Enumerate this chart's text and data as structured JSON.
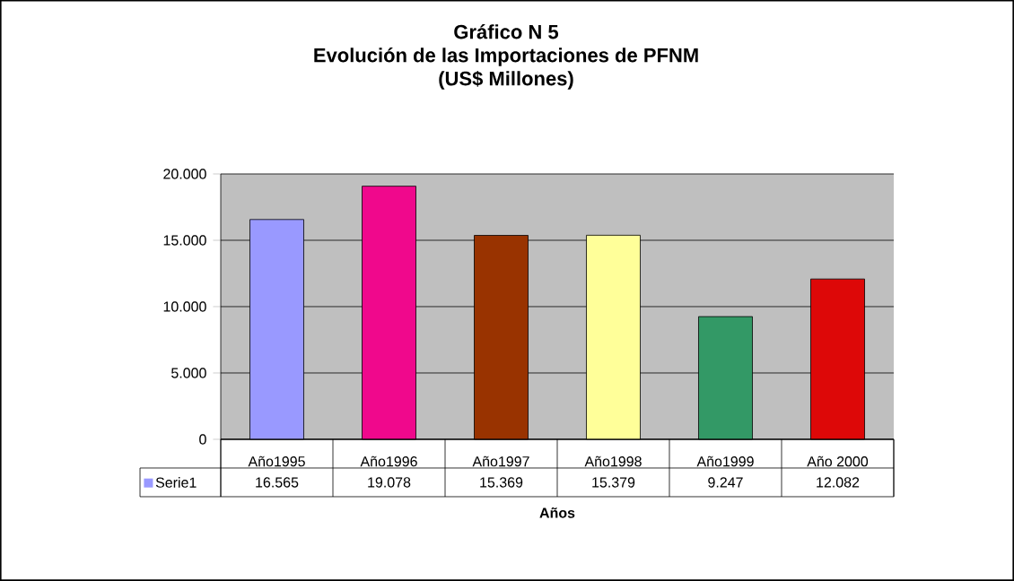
{
  "chart_data": {
    "type": "bar",
    "title": "Gráfico N 5",
    "subtitle": "Evolución de las Importaciones de PFNM",
    "annotations": [
      "(US$ Millones)"
    ],
    "xlabel": "Años",
    "categories": [
      "Año1995",
      "Año1996",
      "Año1997",
      "Año1998",
      "Año1999",
      "Año 2000"
    ],
    "series": [
      {
        "name": "Serie1",
        "color": "#9999ff",
        "colors": [
          "#9999ff",
          "#f0088c",
          "#993300",
          "#ffff99",
          "#339966",
          "#dd0808"
        ],
        "values": [
          16565,
          19078,
          15369,
          15379,
          9247,
          12082
        ],
        "value_labels": [
          "16.565",
          "19.078",
          "15.369",
          "15.379",
          "9.247",
          "12.082"
        ]
      }
    ],
    "ylim": [
      0,
      20000
    ],
    "yticks": [
      {
        "value": 0,
        "label": "0"
      },
      {
        "value": 5000,
        "label": "5.000"
      },
      {
        "value": 10000,
        "label": "10.000"
      },
      {
        "value": 15000,
        "label": "15.000"
      },
      {
        "value": 20000,
        "label": "20.000"
      }
    ],
    "grid": "y",
    "legend": "bottom"
  }
}
